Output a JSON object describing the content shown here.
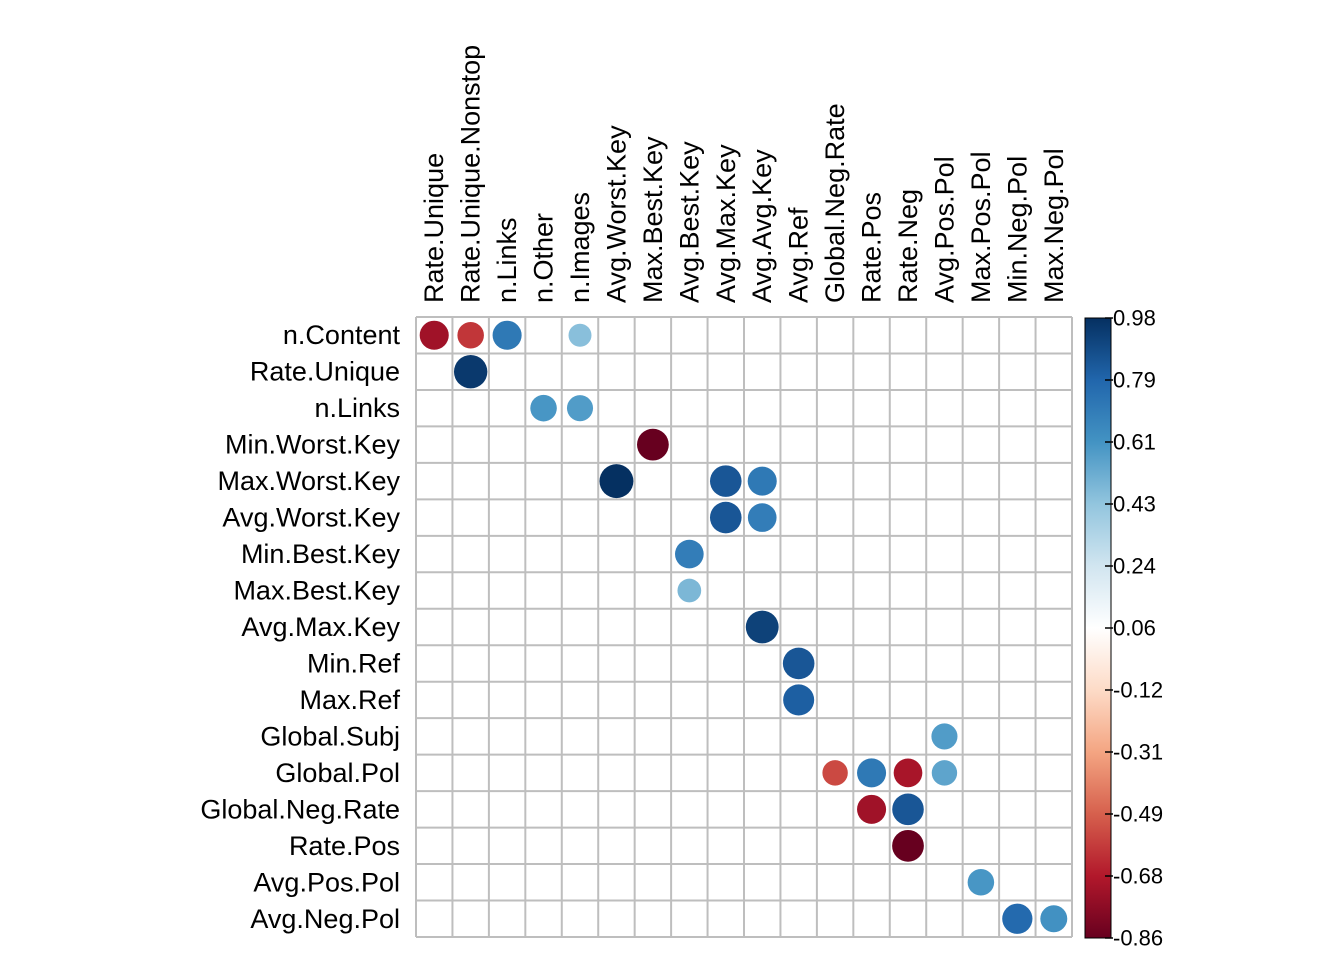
{
  "chart_data": {
    "type": "heatmap",
    "style": "circle correlation matrix",
    "title": "",
    "row_labels": [
      "n.Content",
      "Rate.Unique",
      "n.Links",
      "Min.Worst.Key",
      "Max.Worst.Key",
      "Avg.Worst.Key",
      "Min.Best.Key",
      "Max.Best.Key",
      "Avg.Max.Key",
      "Min.Ref",
      "Max.Ref",
      "Global.Subj",
      "Global.Pol",
      "Global.Neg.Rate",
      "Rate.Pos",
      "Avg.Pos.Pol",
      "Avg.Neg.Pol"
    ],
    "col_labels": [
      "Rate.Unique",
      "Rate.Unique.Nonstop",
      "n.Links",
      "n.Other",
      "n.Images",
      "Avg.Worst.Key",
      "Max.Best.Key",
      "Avg.Best.Key",
      "Avg.Max.Key",
      "Avg.Avg.Key",
      "Avg.Ref",
      "Global.Neg.Rate",
      "Rate.Pos",
      "Rate.Neg",
      "Avg.Pos.Pol",
      "Max.Pos.Pol",
      "Min.Neg.Pol",
      "Max.Neg.Pol"
    ],
    "cells": [
      {
        "row": "n.Content",
        "col": "Rate.Unique",
        "value": -0.72
      },
      {
        "row": "n.Content",
        "col": "Rate.Unique.Nonstop",
        "value": -0.6
      },
      {
        "row": "n.Content",
        "col": "n.Links",
        "value": 0.72
      },
      {
        "row": "n.Content",
        "col": "n.Images",
        "value": 0.45
      },
      {
        "row": "Rate.Unique",
        "col": "Rate.Unique.Nonstop",
        "value": 0.95
      },
      {
        "row": "n.Links",
        "col": "n.Other",
        "value": 0.6
      },
      {
        "row": "n.Links",
        "col": "n.Images",
        "value": 0.58
      },
      {
        "row": "Min.Worst.Key",
        "col": "Max.Best.Key",
        "value": -0.86
      },
      {
        "row": "Max.Worst.Key",
        "col": "Avg.Worst.Key",
        "value": 0.98
      },
      {
        "row": "Max.Worst.Key",
        "col": "Avg.Max.Key",
        "value": 0.85
      },
      {
        "row": "Max.Worst.Key",
        "col": "Avg.Avg.Key",
        "value": 0.72
      },
      {
        "row": "Avg.Worst.Key",
        "col": "Avg.Max.Key",
        "value": 0.85
      },
      {
        "row": "Avg.Worst.Key",
        "col": "Avg.Avg.Key",
        "value": 0.7
      },
      {
        "row": "Min.Best.Key",
        "col": "Avg.Best.Key",
        "value": 0.7
      },
      {
        "row": "Max.Best.Key",
        "col": "Avg.Best.Key",
        "value": 0.48
      },
      {
        "row": "Avg.Max.Key",
        "col": "Avg.Avg.Key",
        "value": 0.92
      },
      {
        "row": "Min.Ref",
        "col": "Avg.Ref",
        "value": 0.85
      },
      {
        "row": "Max.Ref",
        "col": "Avg.Ref",
        "value": 0.82
      },
      {
        "row": "Global.Subj",
        "col": "Avg.Pos.Pol",
        "value": 0.58
      },
      {
        "row": "Global.Pol",
        "col": "Global.Neg.Rate",
        "value": -0.55
      },
      {
        "row": "Global.Pol",
        "col": "Rate.Pos",
        "value": 0.72
      },
      {
        "row": "Global.Pol",
        "col": "Rate.Neg",
        "value": -0.7
      },
      {
        "row": "Global.Pol",
        "col": "Avg.Pos.Pol",
        "value": 0.55
      },
      {
        "row": "Global.Neg.Rate",
        "col": "Rate.Pos",
        "value": -0.72
      },
      {
        "row": "Global.Neg.Rate",
        "col": "Rate.Neg",
        "value": 0.85
      },
      {
        "row": "Rate.Pos",
        "col": "Rate.Neg",
        "value": -0.86
      },
      {
        "row": "Avg.Pos.Pol",
        "col": "Max.Pos.Pol",
        "value": 0.6
      },
      {
        "row": "Avg.Neg.Pol",
        "col": "Min.Neg.Pol",
        "value": 0.78
      },
      {
        "row": "Avg.Neg.Pol",
        "col": "Max.Neg.Pol",
        "value": 0.62
      }
    ],
    "value_range": [
      -0.86,
      0.98
    ],
    "colorbar": {
      "ticks": [
        "0.98",
        "0.79",
        "0.61",
        "0.43",
        "0.24",
        "0.06",
        "-0.12",
        "-0.31",
        "-0.49",
        "-0.68",
        "-0.86"
      ],
      "colors": [
        "#67001F",
        "#B2182B",
        "#D6604D",
        "#F4A582",
        "#FDDBC7",
        "#FFFFFF",
        "#D1E5F0",
        "#92C5DE",
        "#4393C3",
        "#2166AC",
        "#053061"
      ]
    },
    "grid": true,
    "legend": "right"
  }
}
